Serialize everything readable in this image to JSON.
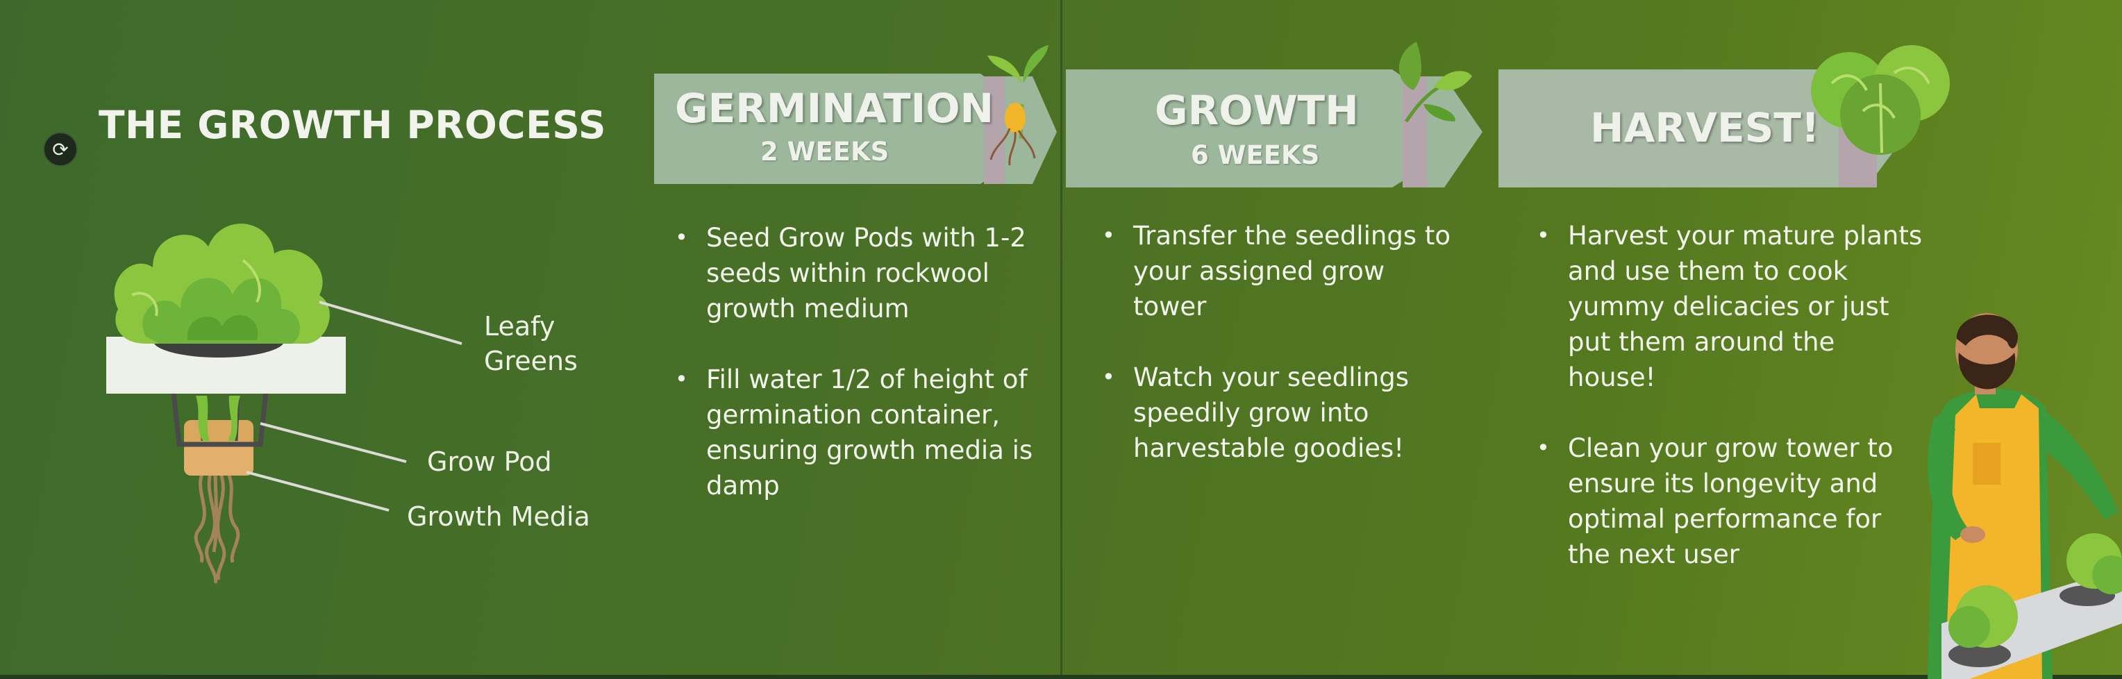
{
  "title": "THE GROWTH PROCESS",
  "sync_icon": "refresh-icon",
  "diagram_labels": {
    "leafy_greens": "Leafy\nGreens",
    "grow_pod": "Grow Pod",
    "growth_media": "Growth Media"
  },
  "stages": [
    {
      "title": "GERMINATION",
      "duration": "2 WEEKS",
      "icon": "seedling-icon",
      "bullets": [
        "Seed Grow Pods with 1-2\nseeds within rockwool\ngrowth medium",
        "Fill water 1/2 of height  of\ngermination container,\nensuring growth media is\ndamp"
      ]
    },
    {
      "title": "GROWTH",
      "duration": "6 WEEKS",
      "icon": "leaf-sprig-icon",
      "bullets": [
        "Transfer the seedlings to\nyour assigned grow\ntower",
        "Watch your seedlings\nspeedily grow into\nharvestable goodies!"
      ]
    },
    {
      "title": "HARVEST!",
      "duration": "",
      "icon": "lettuce-heads-icon",
      "bullets": [
        "Harvest your mature plants\nand use them to cook\nyummy delicacies or just\nput them around the house!",
        "Clean your grow tower to\nensure its longevity and\noptimal performance for\nthe next user"
      ]
    }
  ],
  "colors": {
    "banner_fill": "#9cb79b",
    "banner_fill_light": "#a8b9a5",
    "banner_accent": "#b4a5ad",
    "lettuce_light": "#8cc63f",
    "lettuce_dark": "#5a9e2b",
    "apron": "#f3b52a",
    "shirt": "#3a9a3c"
  }
}
